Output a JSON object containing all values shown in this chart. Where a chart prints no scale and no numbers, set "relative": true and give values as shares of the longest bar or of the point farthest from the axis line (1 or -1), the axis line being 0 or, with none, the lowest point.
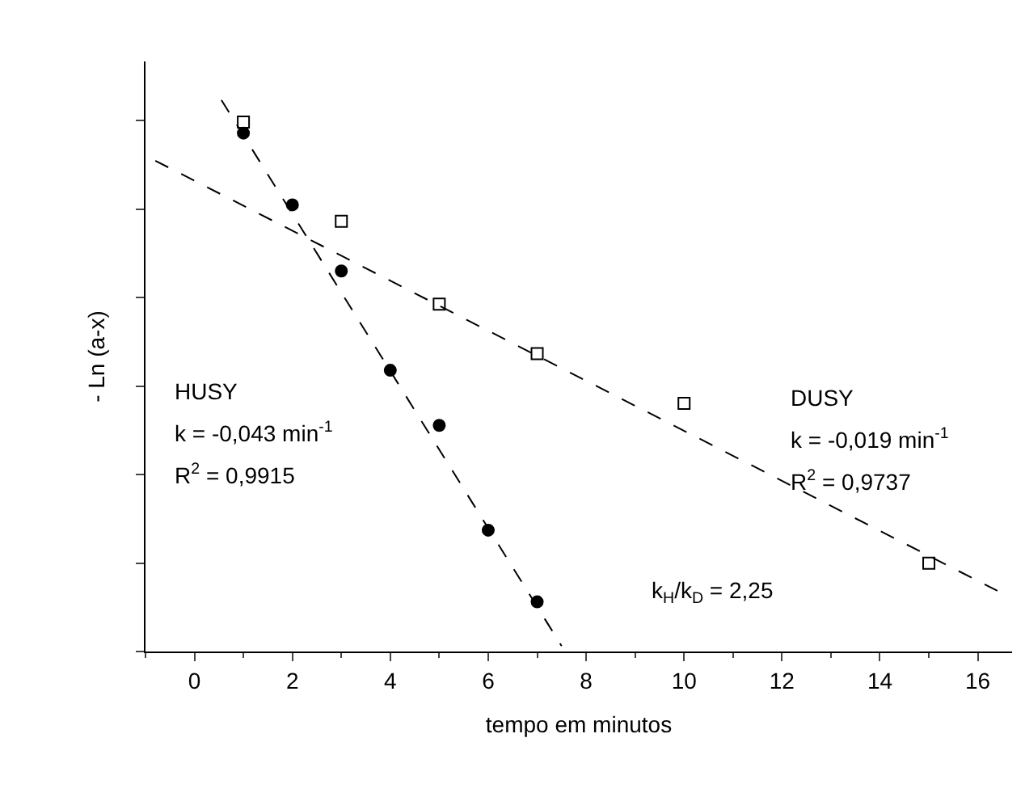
{
  "chart_data": {
    "type": "scatter",
    "relative": true,
    "xlabel": "tempo em minutos",
    "ylabel": "- Ln (a-x)",
    "xlim": [
      -1,
      16.7
    ],
    "xticks": [
      0,
      2,
      4,
      6,
      8,
      10,
      12,
      14,
      16
    ],
    "series": [
      {
        "marker": "square",
        "color": "#000000",
        "x": [
          1,
          3,
          5,
          7,
          10,
          15
        ],
        "values": [
          0.96,
          0.78,
          0.63,
          0.54,
          0.45,
          0.16
        ]
      },
      {
        "marker": "circle",
        "color": "#000000",
        "x": [
          1,
          2,
          3,
          4,
          5,
          6,
          7
        ],
        "values": [
          0.94,
          0.81,
          0.69,
          0.51,
          0.41,
          0.22,
          0.09
        ]
      },
      {
        "type": "line",
        "line_style": "dashed",
        "color": "#000000",
        "x": [
          -0.8,
          16.4
        ],
        "values": [
          0.89,
          0.11
        ]
      },
      {
        "type": "line",
        "line_style": "dashed",
        "color": "#000000",
        "x": [
          0.55,
          7.5
        ],
        "values": [
          1.0,
          0.01
        ]
      }
    ],
    "annotations": [
      "HUSY",
      "k = -0,043 min$^{-1}$",
      "R$^{2}$ = 0,9915",
      "DUSY",
      "k = -0,019 min$^{-1}$",
      "R$^{2}$ = 0,9737",
      "k$_{H}$/k$_{D}$ = 2,25"
    ]
  }
}
